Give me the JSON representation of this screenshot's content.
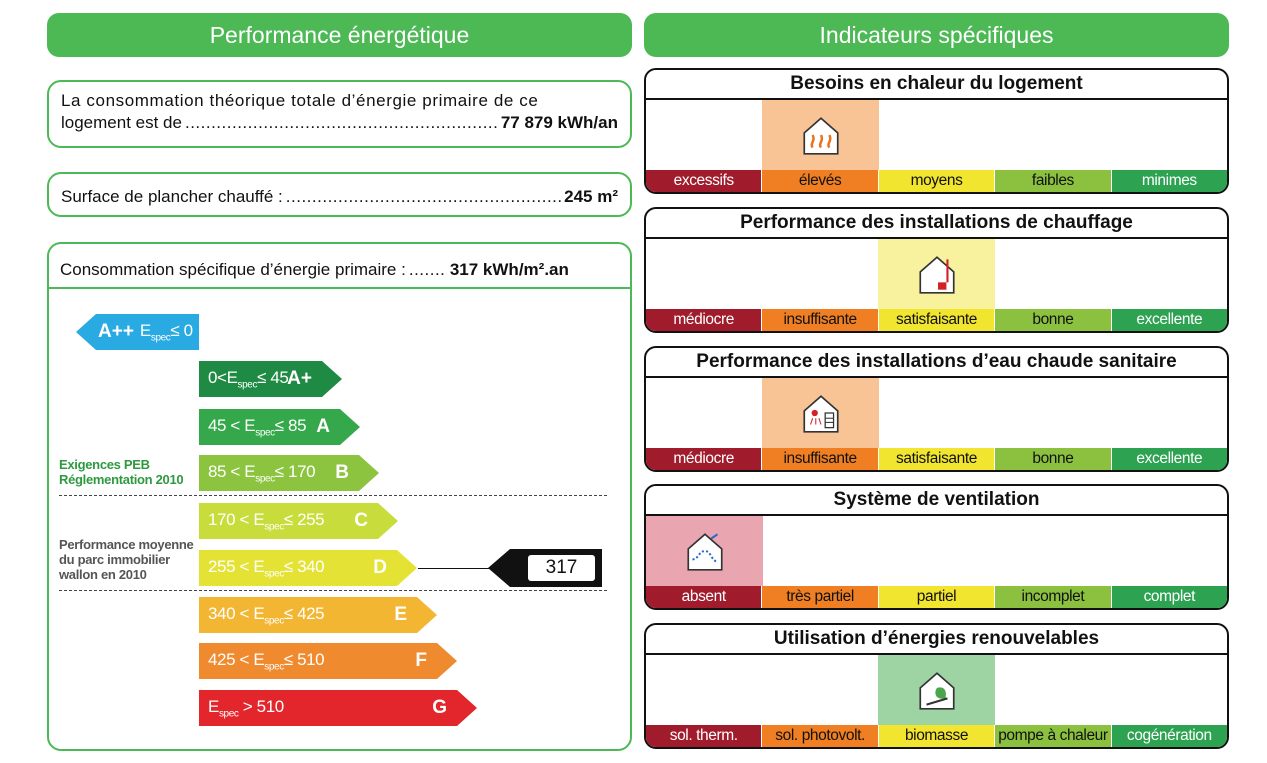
{
  "left": {
    "header": "Performance énergétique",
    "box1": {
      "line1": "La consommation théorique totale d’énergie primaire de ce",
      "line2_prefix": "logement est de",
      "value": "77 879 kWh/an"
    },
    "box2": {
      "label": "Surface de plancher chauffé :",
      "value": "245 m²"
    },
    "box3": {
      "label": "Consommation spécifique d’énergie primaire :",
      "value": "317 kWh/m².an"
    },
    "scale": [
      {
        "range": "E",
        "sub": "spec",
        "range_after": "≤ 0",
        "prefix": "",
        "letter": "A++",
        "color": "#29aae2"
      },
      {
        "prefix": "0<E",
        "sub": "spec",
        "range_after": "≤ 45",
        "letter": "A+",
        "color": "#1f8a43"
      },
      {
        "prefix": "45 < E",
        "sub": "spec",
        "range_after": "≤ 85",
        "letter": "A",
        "color": "#34a84a"
      },
      {
        "prefix": "85 < E",
        "sub": "spec",
        "range_after": "≤ 170",
        "letter": "B",
        "color": "#8cc43f"
      },
      {
        "prefix": "170 < E",
        "sub": "spec",
        "range_after": "≤ 255",
        "letter": "C",
        "color": "#c8dc3b"
      },
      {
        "prefix": "255 < E",
        "sub": "spec",
        "range_after": "≤ 340",
        "letter": "D",
        "color": "#e4e335"
      },
      {
        "prefix": "340 < E",
        "sub": "spec",
        "range_after": "≤ 425",
        "letter": "E",
        "color": "#f3b633"
      },
      {
        "prefix": "425 < E",
        "sub": "spec",
        "range_after": "≤ 510",
        "letter": "F",
        "color": "#ef8a2e"
      },
      {
        "prefix": "E",
        "sub": "spec",
        "range_after": " > 510",
        "letter": "G",
        "color": "#e3262b"
      }
    ],
    "note_peb": [
      "Exigences PEB",
      "Réglementation 2010"
    ],
    "note_avg": [
      "Performance moyenne",
      "du parc immobilier",
      "wallon en 2010"
    ],
    "marker_value": "317"
  },
  "right": {
    "header": "Indicateurs spécifiques",
    "panels": [
      {
        "title": "Besoins en chaleur du logement",
        "icon": "heat-house-icon",
        "selected": 1,
        "highlight": "#f9c495",
        "labels": [
          "excessifs",
          "élevés",
          "moyens",
          "faibles",
          "minimes"
        ]
      },
      {
        "title": "Performance des installations de chauffage",
        "icon": "heating-installation-icon",
        "selected": 2,
        "highlight": "#f8f19d",
        "labels": [
          "médiocre",
          "insuffisante",
          "satisfaisante",
          "bonne",
          "excellente"
        ]
      },
      {
        "title": "Performance des installations d’eau chaude sanitaire",
        "icon": "hot-water-icon",
        "selected": 1,
        "highlight": "#f9c495",
        "labels": [
          "médiocre",
          "insuffisante",
          "satisfaisante",
          "bonne",
          "excellente"
        ]
      },
      {
        "title": "Système de ventilation",
        "icon": "ventilation-icon",
        "selected": 0,
        "highlight": "#eaa6b0",
        "labels": [
          "absent",
          "très partiel",
          "partiel",
          "incomplet",
          "complet"
        ]
      },
      {
        "title": "Utilisation d’énergies renouvelables",
        "icon": "biomass-icon",
        "selected": 2,
        "highlight": "#9ed3a4",
        "labels": [
          "sol. therm.",
          "sol. photovolt.",
          "biomasse",
          "pompe à chaleur",
          "cogénération"
        ]
      }
    ],
    "bar_colors": [
      "#a01c2d",
      "#ef7f22",
      "#f2e530",
      "#8bc13f",
      "#2da352"
    ]
  }
}
